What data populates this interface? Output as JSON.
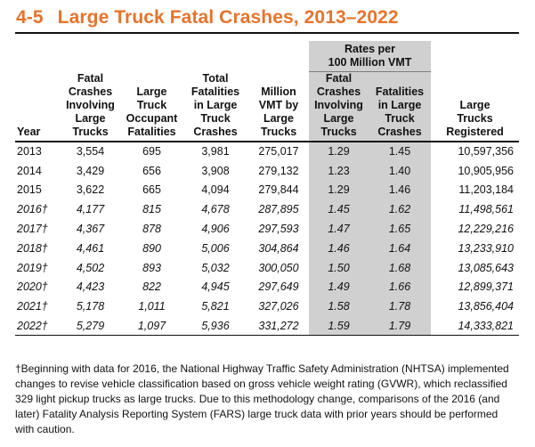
{
  "title": {
    "number": "4-5",
    "text": "Large Truck Fatal Crashes, 2013–2022"
  },
  "table": {
    "rates_group": [
      "Rates per",
      "100 Million VMT"
    ],
    "headers": {
      "year": "Year",
      "fatal_crashes": [
        "Fatal",
        "Crashes",
        "Involving",
        "Large",
        "Trucks"
      ],
      "occupant_fatalities": [
        "Large",
        "Truck",
        "Occupant",
        "Fatalities"
      ],
      "total_fatalities": [
        "Total",
        "Fatalities",
        "in Large",
        "Truck",
        "Crashes"
      ],
      "vmt": [
        "Million",
        "VMT by",
        "Large",
        "Trucks"
      ],
      "rate_crashes": [
        "Fatal",
        "Crashes",
        "Involving",
        "Large",
        "Trucks"
      ],
      "rate_fatalities": [
        "Fatalities",
        "in Large",
        "Truck",
        "Crashes"
      ],
      "registered": [
        "Large",
        "Trucks",
        "Registered"
      ]
    },
    "rows": [
      {
        "year": "2013",
        "crashes": "3,554",
        "occupant": "695",
        "total": "3,981",
        "vmt": "275,017",
        "rate_crashes": "1.29",
        "rate_fatalities": "1.45",
        "registered": "10,597,356",
        "italic": false
      },
      {
        "year": "2014",
        "crashes": "3,429",
        "occupant": "656",
        "total": "3,908",
        "vmt": "279,132",
        "rate_crashes": "1.23",
        "rate_fatalities": "1.40",
        "registered": "10,905,956",
        "italic": false
      },
      {
        "year": "2015",
        "crashes": "3,622",
        "occupant": "665",
        "total": "4,094",
        "vmt": "279,844",
        "rate_crashes": "1.29",
        "rate_fatalities": "1.46",
        "registered": "11,203,184",
        "italic": false
      },
      {
        "year": "2016†",
        "crashes": "4,177",
        "occupant": "815",
        "total": "4,678",
        "vmt": "287,895",
        "rate_crashes": "1.45",
        "rate_fatalities": "1.62",
        "registered": "11,498,561",
        "italic": true
      },
      {
        "year": "2017†",
        "crashes": "4,367",
        "occupant": "878",
        "total": "4,906",
        "vmt": "297,593",
        "rate_crashes": "1.47",
        "rate_fatalities": "1.65",
        "registered": "12,229,216",
        "italic": true
      },
      {
        "year": "2018†",
        "crashes": "4,461",
        "occupant": "890",
        "total": "5,006",
        "vmt": "304,864",
        "rate_crashes": "1.46",
        "rate_fatalities": "1.64",
        "registered": "13,233,910",
        "italic": true
      },
      {
        "year": "2019†",
        "crashes": "4,502",
        "occupant": "893",
        "total": "5,032",
        "vmt": "300,050",
        "rate_crashes": "1.50",
        "rate_fatalities": "1.68",
        "registered": "13,085,643",
        "italic": true
      },
      {
        "year": "2020†",
        "crashes": "4,423",
        "occupant": "822",
        "total": "4,945",
        "vmt": "297,649",
        "rate_crashes": "1.49",
        "rate_fatalities": "1.66",
        "registered": "12,899,371",
        "italic": true
      },
      {
        "year": "2021†",
        "crashes": "5,178",
        "occupant": "1,011",
        "total": "5,821",
        "vmt": "327,026",
        "rate_crashes": "1.58",
        "rate_fatalities": "1.78",
        "registered": "13,856,404",
        "italic": true
      },
      {
        "year": "2022†",
        "crashes": "5,279",
        "occupant": "1,097",
        "total": "5,936",
        "vmt": "331,272",
        "rate_crashes": "1.59",
        "rate_fatalities": "1.79",
        "registered": "14,333,821",
        "italic": true
      }
    ]
  },
  "footnote": "†Beginning with data for 2016, the National Highway Traffic Safety Administration (NHTSA) implemented changes to revise vehicle classification based on gross vehicle weight rating (GVWR), which reclassified 329 light pickup trucks as large trucks. Due to this methodology change, comparisons of the 2016 (and later) Fatality Analysis Reporting System (FARS) large truck data with prior years should be performed with caution.",
  "colors": {
    "title": "#e8732a",
    "shade": "#d0d0d0"
  }
}
